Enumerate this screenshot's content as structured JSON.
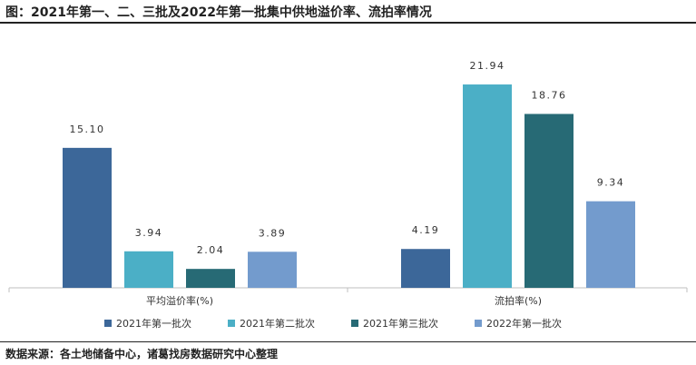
{
  "header": {
    "title": "图：2021年第一、二、三批及2022年第一批集中供地溢价率、流拍率情况"
  },
  "footer": {
    "source": "数据来源：各土地储备中心，诸葛找房数据研究中心整理"
  },
  "chart_data": {
    "type": "bar",
    "title": "图：2021年第一、二、三批及2022年第一批集中供地溢价率、流拍率情况",
    "categories": [
      "平均溢价率(%)",
      "流拍率(%)"
    ],
    "series": [
      {
        "name": "2021年第一批次",
        "color": "#3c6799",
        "values": [
          15.1,
          4.19
        ]
      },
      {
        "name": "2021年第二批次",
        "color": "#4bafc6",
        "values": [
          3.94,
          21.94
        ]
      },
      {
        "name": "2021年第三批次",
        "color": "#276a75",
        "values": [
          2.04,
          18.76
        ]
      },
      {
        "name": "2022年第一批次",
        "color": "#739bcd",
        "values": [
          3.89,
          9.34
        ]
      }
    ],
    "value_labels": [
      [
        "15.10",
        "4.19"
      ],
      [
        "3.94",
        "21.94"
      ],
      [
        "2.04",
        "18.76"
      ],
      [
        "3.89",
        "9.34"
      ]
    ],
    "ylim": [
      0,
      24
    ],
    "grid": false,
    "legend_position": "bottom"
  }
}
